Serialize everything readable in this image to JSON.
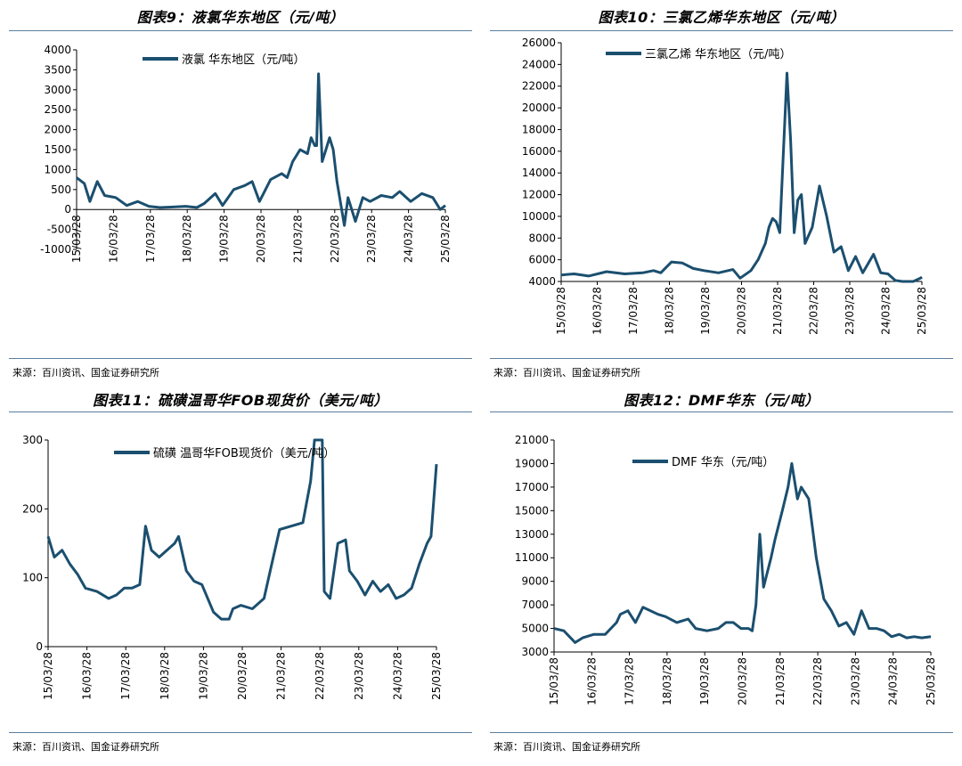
{
  "source_text": "来源：百川资讯、国金证券研究所",
  "line_color": "#1b4f6f",
  "panels": [
    {
      "title": "图表9：液氯华东地区（元/吨）"
    },
    {
      "title": "图表10：三氯乙烯华东地区（元/吨）"
    },
    {
      "title": "图表11：硫磺温哥华FOB现货价（美元/吨）"
    },
    {
      "title": "图表12：DMF华东（元/吨）"
    }
  ],
  "chart_data": [
    {
      "type": "line",
      "legend": "液氯 华东地区（元/吨）",
      "ylim": [
        -1000,
        4000
      ],
      "yticks": [
        -1000,
        -500,
        0,
        500,
        1000,
        1500,
        2000,
        2500,
        3000,
        3500,
        4000
      ],
      "xlim": [
        2015.24,
        2025.24
      ],
      "xticks": [
        "15/03/28",
        "16/03/28",
        "17/03/28",
        "18/03/28",
        "19/03/28",
        "20/03/28",
        "21/03/28",
        "22/03/28",
        "23/03/28",
        "24/03/28",
        "25/03/28"
      ],
      "series": [
        {
          "x": [
            2015.24,
            2015.45,
            2015.6,
            2015.8,
            2016.0,
            2016.3,
            2016.6,
            2016.9,
            2017.2,
            2017.5,
            2017.8,
            2018.2,
            2018.5,
            2018.7,
            2019.0,
            2019.2,
            2019.5,
            2019.8,
            2020.0,
            2020.2,
            2020.5,
            2020.8,
            2020.95,
            2021.1,
            2021.3,
            2021.5,
            2021.6,
            2021.7,
            2021.75,
            2021.8,
            2021.9,
            2022.0,
            2022.1,
            2022.2,
            2022.3,
            2022.5,
            2022.6,
            2022.8,
            2023.0,
            2023.2,
            2023.5,
            2023.8,
            2024.0,
            2024.3,
            2024.6,
            2024.9,
            2025.1,
            2025.24
          ],
          "y": [
            800,
            650,
            200,
            700,
            350,
            300,
            100,
            200,
            80,
            50,
            60,
            80,
            50,
            150,
            400,
            100,
            500,
            600,
            700,
            200,
            750,
            900,
            800,
            1200,
            1500,
            1400,
            1800,
            1600,
            1600,
            3400,
            1200,
            1500,
            1800,
            1500,
            700,
            -400,
            300,
            -300,
            300,
            200,
            350,
            300,
            450,
            200,
            400,
            300,
            0,
            100
          ]
        }
      ]
    },
    {
      "type": "line",
      "legend": "三氯乙烯 华东地区（元/吨）",
      "ylim": [
        4000,
        26000
      ],
      "yticks": [
        4000,
        6000,
        8000,
        10000,
        12000,
        14000,
        16000,
        18000,
        20000,
        22000,
        24000,
        26000
      ],
      "xlim": [
        2015.24,
        2025.24
      ],
      "xticks": [
        "15/03/28",
        "16/03/28",
        "17/03/28",
        "18/03/28",
        "19/03/28",
        "20/03/28",
        "21/03/28",
        "22/03/28",
        "23/03/28",
        "24/03/28",
        "25/03/28"
      ],
      "series": [
        {
          "x": [
            2015.24,
            2015.6,
            2016.0,
            2016.5,
            2017.0,
            2017.5,
            2017.8,
            2018.0,
            2018.3,
            2018.6,
            2018.9,
            2019.2,
            2019.6,
            2020.0,
            2020.2,
            2020.5,
            2020.7,
            2020.9,
            2021.0,
            2021.1,
            2021.2,
            2021.3,
            2021.5,
            2021.6,
            2021.7,
            2021.8,
            2021.9,
            2022.0,
            2022.2,
            2022.4,
            2022.6,
            2022.8,
            2023.0,
            2023.2,
            2023.4,
            2023.6,
            2023.9,
            2024.1,
            2024.3,
            2024.5,
            2024.7,
            2025.0,
            2025.2,
            2025.24
          ],
          "y": [
            4600,
            4700,
            4500,
            4900,
            4700,
            4800,
            5000,
            4800,
            5800,
            5700,
            5200,
            5000,
            4800,
            5100,
            4300,
            5000,
            6000,
            7500,
            9000,
            9800,
            9500,
            8500,
            23200,
            17000,
            8500,
            11500,
            12000,
            7500,
            9000,
            12800,
            10000,
            6700,
            7200,
            5000,
            6300,
            4800,
            6500,
            4800,
            4700,
            4100,
            3900,
            4000,
            4300,
            4400
          ]
        }
      ]
    },
    {
      "type": "line",
      "legend": "硫磺 温哥华FOB现货价（美元/吨）",
      "ylim": [
        0,
        300
      ],
      "yticks": [
        0,
        100,
        200,
        300
      ],
      "xlim": [
        2015.24,
        2025.24
      ],
      "xticks": [
        "15/03/28",
        "16/03/28",
        "17/03/28",
        "18/03/28",
        "19/03/28",
        "20/03/28",
        "21/03/28",
        "22/03/28",
        "23/03/28",
        "24/03/28",
        "25/03/28"
      ],
      "series": [
        {
          "x": [
            2015.24,
            2015.4,
            2015.6,
            2015.8,
            2016.0,
            2016.2,
            2016.5,
            2016.8,
            2017.0,
            2017.2,
            2017.4,
            2017.6,
            2017.75,
            2017.9,
            2018.1,
            2018.3,
            2018.5,
            2018.6,
            2018.8,
            2019.0,
            2019.2,
            2019.5,
            2019.7,
            2019.9,
            2020.0,
            2020.2,
            2020.5,
            2020.8,
            2021.0,
            2021.2,
            2021.5,
            2021.8,
            2022.0,
            2022.1,
            2022.2,
            2022.3,
            2022.35,
            2022.5,
            2022.7,
            2022.9,
            2023.0,
            2023.2,
            2023.4,
            2023.6,
            2023.8,
            2024.0,
            2024.2,
            2024.4,
            2024.6,
            2024.8,
            2025.0,
            2025.1,
            2025.24
          ],
          "y": [
            160,
            130,
            140,
            120,
            105,
            85,
            80,
            70,
            75,
            85,
            85,
            90,
            175,
            140,
            130,
            140,
            150,
            160,
            110,
            95,
            90,
            50,
            40,
            40,
            55,
            60,
            55,
            70,
            120,
            170,
            175,
            180,
            240,
            300,
            300,
            300,
            80,
            70,
            150,
            155,
            110,
            95,
            75,
            95,
            80,
            90,
            70,
            75,
            85,
            120,
            150,
            160,
            265
          ]
        }
      ]
    },
    {
      "type": "line",
      "legend": "DMF 华东（元/吨）",
      "ylim": [
        3000,
        21000
      ],
      "yticks": [
        3000,
        5000,
        7000,
        9000,
        11000,
        13000,
        15000,
        17000,
        19000,
        21000
      ],
      "xlim": [
        2015.24,
        2025.24
      ],
      "xticks": [
        "15/03/28",
        "16/03/28",
        "17/03/28",
        "18/03/28",
        "19/03/28",
        "20/03/28",
        "21/03/28",
        "22/03/28",
        "23/03/28",
        "24/03/28",
        "25/03/28"
      ],
      "series": [
        {
          "x": [
            2015.24,
            2015.5,
            2015.8,
            2016.0,
            2016.3,
            2016.6,
            2016.9,
            2017.0,
            2017.2,
            2017.4,
            2017.6,
            2017.8,
            2018.0,
            2018.2,
            2018.5,
            2018.8,
            2019.0,
            2019.3,
            2019.6,
            2019.8,
            2020.0,
            2020.2,
            2020.4,
            2020.5,
            2020.6,
            2020.7,
            2020.8,
            2021.0,
            2021.1,
            2021.3,
            2021.45,
            2021.55,
            2021.7,
            2021.8,
            2022.0,
            2022.1,
            2022.2,
            2022.4,
            2022.6,
            2022.8,
            2023.0,
            2023.2,
            2023.4,
            2023.6,
            2023.8,
            2024.0,
            2024.2,
            2024.4,
            2024.6,
            2024.8,
            2025.0,
            2025.24
          ],
          "y": [
            5000,
            4800,
            3800,
            4200,
            4500,
            4500,
            5500,
            6200,
            6500,
            5500,
            6800,
            6500,
            6200,
            6000,
            5500,
            5800,
            5000,
            4800,
            5000,
            5500,
            5500,
            5000,
            5000,
            4800,
            7000,
            13000,
            8500,
            11000,
            12500,
            15000,
            17000,
            19000,
            16000,
            17000,
            16000,
            13500,
            11000,
            7500,
            6500,
            5200,
            5500,
            4500,
            6500,
            5000,
            5000,
            4800,
            4300,
            4500,
            4200,
            4300,
            4200,
            4300
          ]
        }
      ]
    }
  ]
}
